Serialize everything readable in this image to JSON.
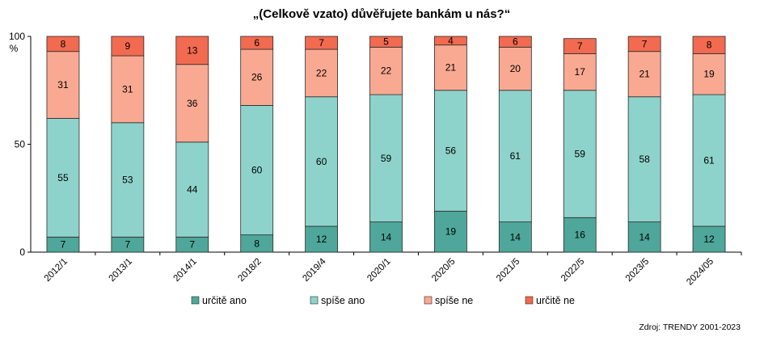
{
  "chart_data": {
    "type": "bar",
    "stacked": true,
    "title": "„(Celkově vzato) důvěřujete bankám u nás?“",
    "ylabel": "%",
    "ylim": [
      0,
      100
    ],
    "yticks": [
      "0",
      "50",
      "100"
    ],
    "categories": [
      "2012/1",
      "2013/1",
      "2014/1",
      "2018/2",
      "2019/4",
      "2020/1",
      "2020/5",
      "2021/5",
      "2022/5",
      "2023/5",
      "2024/05"
    ],
    "series": [
      {
        "name": "určitě ano",
        "color": "#4EA79A",
        "values": [
          7,
          7,
          7,
          8,
          12,
          14,
          19,
          14,
          16,
          14,
          12
        ]
      },
      {
        "name": "spíše ano",
        "color": "#8ED3CB",
        "values": [
          55,
          53,
          44,
          60,
          60,
          59,
          56,
          61,
          59,
          58,
          61
        ]
      },
      {
        "name": "spíše ne",
        "color": "#F9A992",
        "values": [
          31,
          31,
          36,
          26,
          22,
          22,
          21,
          20,
          17,
          21,
          19
        ]
      },
      {
        "name": "určitě ne",
        "color": "#F26A4F",
        "values": [
          8,
          9,
          13,
          6,
          7,
          5,
          4,
          6,
          7,
          7,
          8
        ]
      }
    ],
    "grid": false,
    "legend_position": "bottom"
  },
  "source_text": "Zdroj: TRENDY 2001-2023"
}
